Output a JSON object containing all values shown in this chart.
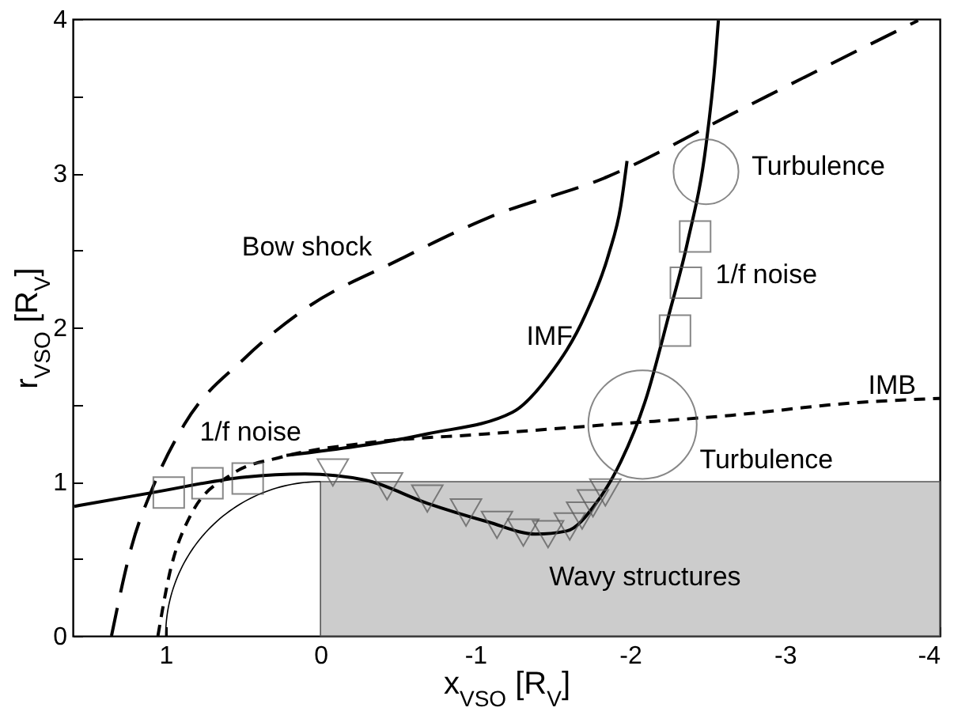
{
  "chart_data": {
    "type": "line",
    "xlabel": "x$_{VSO}$ [R$_{V}$]",
    "ylabel": "r$_{VSO}$ [R$_{V}$]",
    "xlim": [
      1.6,
      -4
    ],
    "xticks": [
      1,
      0,
      -1,
      -2,
      -3,
      -4
    ],
    "ylim": [
      0,
      4
    ],
    "yticks": [
      0,
      {
        "value": 0.5,
        "label": null
      },
      1,
      {
        "value": 1.5,
        "label": null
      },
      2,
      {
        "value": 2.5,
        "label": null
      },
      3,
      {
        "value": 3.5,
        "label": null
      },
      4
    ],
    "series": [
      {
        "type": "line",
        "color": "#000000",
        "line_style": "dashed",
        "x": [
          1.35,
          1.22,
          1.08,
          0.88,
          0.49,
          0.1,
          -0.49,
          -1.08,
          -1.86,
          -2.65,
          -3.24,
          -3.86
        ],
        "values": [
          0,
          0.58,
          0.97,
          1.37,
          1.8,
          2.12,
          2.43,
          2.71,
          2.98,
          3.38,
          3.68,
          3.99
        ]
      },
      {
        "type": "line",
        "color": "#000000",
        "line_style": "dotted",
        "x": [
          1.05,
          0.98,
          0.84,
          0.57,
          0.25,
          -0.29,
          -1.08,
          -1.86,
          -2.65,
          -3.43,
          -4
        ],
        "values": [
          0,
          0.38,
          0.78,
          1.05,
          1.16,
          1.25,
          1.31,
          1.37,
          1.43,
          1.51,
          1.54
        ]
      },
      {
        "type": "line",
        "color": "#000000",
        "line_style": "solid",
        "x": [
          0.22,
          -0.69,
          -1.24,
          -1.47,
          -1.71,
          -1.86,
          -1.94,
          -1.98
        ],
        "values": [
          1.17,
          1.31,
          1.45,
          1.68,
          2.08,
          2.47,
          2.79,
          3.08
        ]
      },
      {
        "type": "line",
        "color": "#000000",
        "line_style": "solid",
        "x": [
          1.59,
          1.08,
          0.49,
          0.1,
          -0.29,
          -0.69,
          -1.08,
          -1.39,
          -1.59,
          -1.78,
          -1.94,
          -2.1,
          -2.25,
          -2.37,
          -2.49,
          -2.55,
          -2.57
        ],
        "values": [
          0.84,
          0.93,
          1.03,
          1.05,
          1.01,
          0.86,
          0.74,
          0.66,
          0.68,
          0.86,
          1.13,
          1.53,
          2.08,
          2.55,
          3.18,
          3.73,
          3.99
        ]
      },
      {
        "type": "scatter",
        "color": "#555555",
        "marker": "square",
        "x": [
          0.98,
          0.73,
          0.47,
          -2.29,
          -2.36,
          -2.42
        ],
        "values": [
          0.93,
          0.99,
          1.02,
          1.98,
          2.29,
          2.59
        ]
      },
      {
        "type": "scatter",
        "color": "#555555",
        "marker": "triangle",
        "x": [
          -0.08,
          -0.43,
          -0.69,
          -0.94,
          -1.14,
          -1.31,
          -1.47,
          -1.61,
          -1.69,
          -1.76,
          -1.84
        ],
        "values": [
          1.06,
          0.97,
          0.89,
          0.8,
          0.72,
          0.67,
          0.66,
          0.71,
          0.78,
          0.86,
          0.93
        ]
      },
      {
        "type": "bubble",
        "color": "#555555",
        "x": [
          -2.49,
          -2.08
        ],
        "values": [
          3.01,
          1.37
        ],
        "sizes": [
          0.36,
          1
        ]
      }
    ],
    "annotations": [
      "Bow shock",
      "IMF",
      "1/f noise",
      "IMB",
      "Turbulence",
      "1/f noise",
      "Turbulence",
      "Wavy structures"
    ]
  }
}
